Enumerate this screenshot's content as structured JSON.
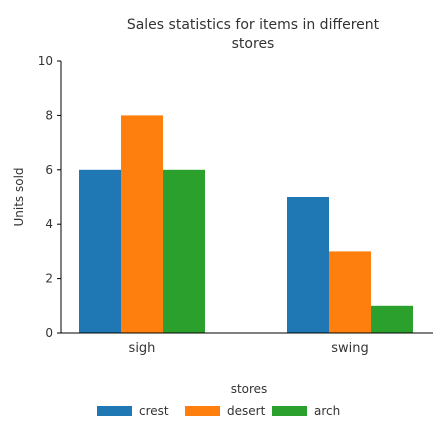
{
  "chart_data": {
    "type": "bar",
    "title": "Sales statistics for items in different stores",
    "title_lines": [
      "Sales statistics for items in different",
      "stores"
    ],
    "xlabel": "stores",
    "ylabel": "Units sold",
    "categories": [
      "sigh",
      "swing"
    ],
    "series": [
      {
        "name": "crest",
        "color": "#1f77b4",
        "values": [
          6,
          5
        ]
      },
      {
        "name": "desert",
        "color": "#ff7f0e",
        "values": [
          8,
          3
        ]
      },
      {
        "name": "arch",
        "color": "#2ca02c",
        "values": [
          6,
          1
        ]
      }
    ],
    "ylim": [
      0,
      10
    ],
    "yticks": [
      "0",
      "2",
      "4",
      "6",
      "8",
      "10"
    ],
    "grid": false,
    "legend_position": "bottom"
  }
}
